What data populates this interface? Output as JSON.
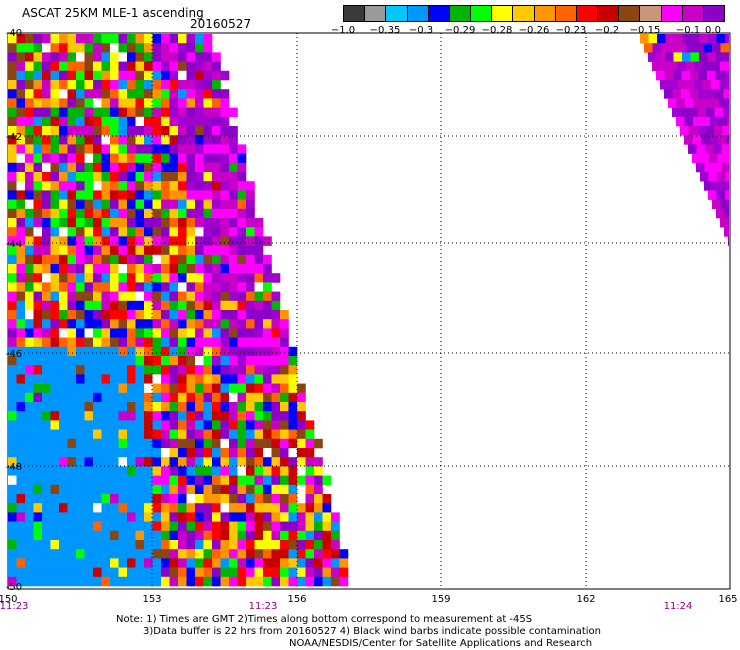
{
  "title": "ASCAT 25KM MLE-1 ascending",
  "date": "20160527",
  "colorbar": {
    "colors": [
      "#3a3a3a",
      "#9a9a9a",
      "#00c8ff",
      "#0096ff",
      "#0000ff",
      "#00b400",
      "#00ff00",
      "#ffff00",
      "#ffc800",
      "#ff9600",
      "#ff6400",
      "#ff0000",
      "#c80000",
      "#8b4513",
      "#c89678",
      "#ff00ff",
      "#c800c8",
      "#8c00c8"
    ],
    "labels": [
      "−1.0",
      "−0.35",
      "−0.3",
      "−0.29",
      "−0.28",
      "−0.26",
      "−0.23",
      "−0.2",
      "−0.15",
      "−0.1",
      "0.0"
    ]
  },
  "axes": {
    "lon_ticks": [
      "150",
      "153",
      "156",
      "159",
      "162",
      "165"
    ],
    "lat_ticks": [
      "-40",
      "-42",
      "-44",
      "-46",
      "-48",
      "-50"
    ],
    "lon_range": [
      150,
      165
    ],
    "lat_range": [
      -40,
      -50
    ]
  },
  "times": [
    "11:23",
    "11:23",
    "11:24"
  ],
  "notes": {
    "line1": "Note: 1) Times are GMT 2)Times along bottom correspond to measurement at -45S",
    "line2": "3)Data buffer is 22 hrs from 20160527 4) Black wind barbs indicate possible contamination",
    "line3": "NOAA/NESDIS/Center for Satellite Applications and Research"
  }
}
